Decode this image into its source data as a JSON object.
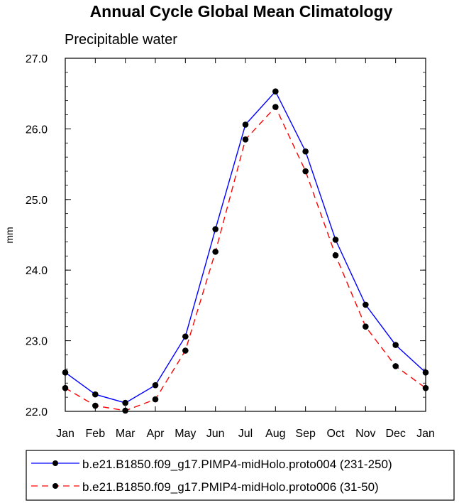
{
  "chart_data": {
    "type": "line",
    "title": "Annual Cycle Global Mean Climatology",
    "subtitle": "Precipitable water",
    "xlabel": "",
    "ylabel": "mm",
    "categories": [
      "Jan",
      "Feb",
      "Mar",
      "Apr",
      "May",
      "Jun",
      "Jul",
      "Aug",
      "Sep",
      "Oct",
      "Nov",
      "Dec",
      "Jan"
    ],
    "ylim": [
      22.0,
      27.0
    ],
    "yticks": [
      "22.0",
      "23.0",
      "24.0",
      "25.0",
      "26.0",
      "27.0"
    ],
    "grid": false,
    "legend_position": "bottom",
    "series": [
      {
        "name": "b.e21.B1850.f09_g17.PIMP4-midHolo.proto004 (231-250)",
        "color": "#0000ff",
        "dash": "solid",
        "values": [
          22.55,
          22.24,
          22.12,
          22.37,
          23.06,
          24.58,
          26.06,
          26.53,
          25.68,
          24.43,
          23.51,
          22.94,
          22.55
        ]
      },
      {
        "name": "b.e21.B1850.f09_g17.PMIP4-midHolo.proto006 (31-50)",
        "color": "#ff0000",
        "dash": "dashed",
        "values": [
          22.33,
          22.08,
          22.01,
          22.17,
          22.86,
          24.26,
          25.85,
          26.31,
          25.4,
          24.21,
          23.2,
          22.64,
          22.33
        ]
      }
    ]
  }
}
